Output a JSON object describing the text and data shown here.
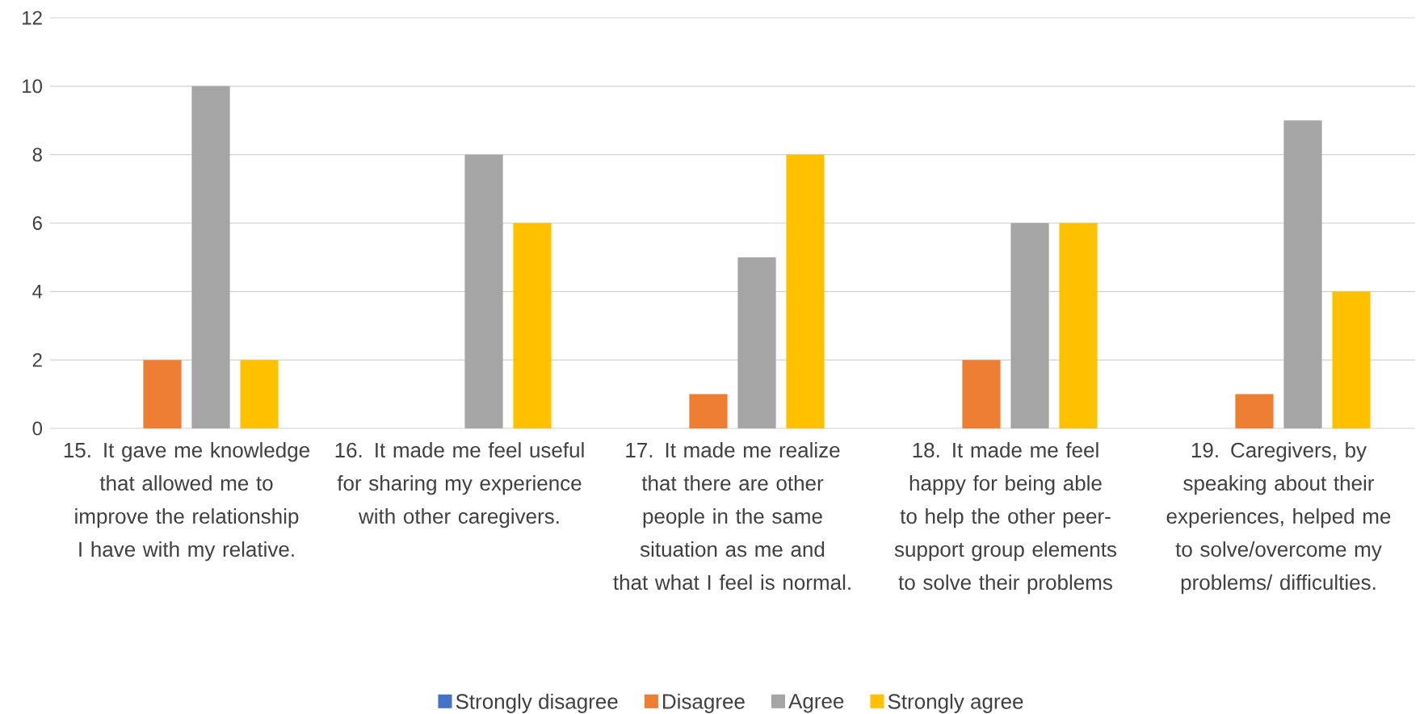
{
  "chart_data": {
    "type": "bar",
    "categories": [
      "15. It gave me knowledge that allowed me to improve the relationship I have with my relative.",
      "16. It made me feel useful for sharing my experience with other caregivers.",
      "17. It made me realize that there are other people in the same situation as me and that what I feel is normal.",
      "18. It made me feel happy for being able to help the other peer-support group elements to solve their problems",
      "19. Caregivers, by speaking about their experiences, helped me to solve/overcome my problems/ difficulties."
    ],
    "series": [
      {
        "name": "Strongly disagree",
        "color": "#4472c4",
        "values": [
          0,
          0,
          0,
          0,
          0
        ]
      },
      {
        "name": "Disagree",
        "color": "#ed7d31",
        "values": [
          2,
          0,
          1,
          2,
          1
        ]
      },
      {
        "name": "Agree",
        "color": "#a5a5a5",
        "values": [
          10,
          8,
          5,
          6,
          9
        ]
      },
      {
        "name": "Strongly agree",
        "color": "#ffc000",
        "values": [
          2,
          6,
          8,
          6,
          4
        ]
      }
    ],
    "ylim": [
      0,
      12
    ],
    "yticks": [
      0,
      2,
      4,
      6,
      8,
      10,
      12
    ],
    "grid": "y",
    "legend": "bottom"
  }
}
